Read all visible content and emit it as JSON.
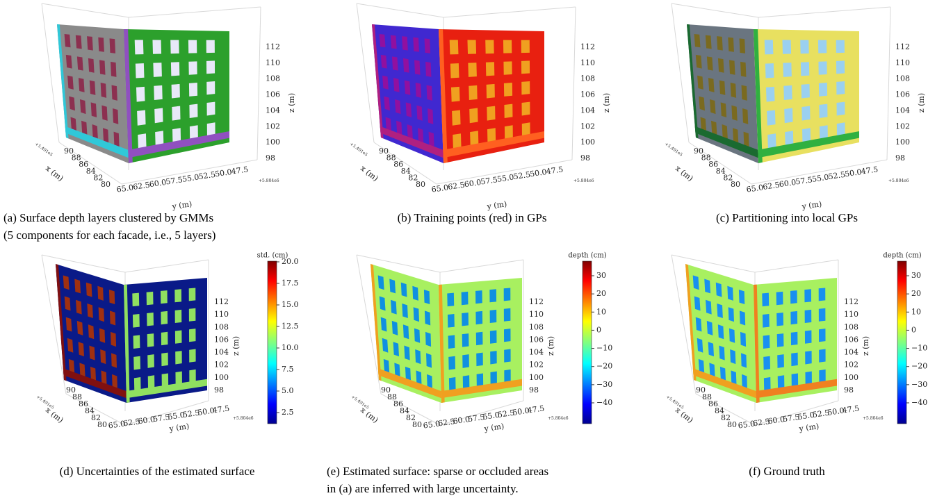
{
  "panels": [
    {
      "axes": {
        "x_ticks": [
          "90",
          "88",
          "86",
          "84",
          "82",
          "80"
        ],
        "x_label": "x (m)",
        "x_offset": "+5.491e5",
        "y_ticks": [
          "65.0",
          "62.5",
          "60.0",
          "57.5",
          "55.0",
          "52.5",
          "50.0",
          "47.5"
        ],
        "y_label": "y (m)",
        "y_offset": "+5.804e6",
        "z_ticks": [
          "112",
          "110",
          "108",
          "106",
          "104",
          "102",
          "100",
          "98"
        ],
        "z_label": "z (m)"
      },
      "caption": [
        "(a) Surface depth layers clustered by GMMs",
        "(5 components for each facade, i.e., 5 layers)"
      ]
    },
    {
      "axes": {
        "x_ticks": [
          "90",
          "88",
          "86",
          "84",
          "82",
          "80"
        ],
        "x_label": "x (m)",
        "x_offset": "+5.491e5",
        "y_ticks": [
          "65.0",
          "62.5",
          "60.0",
          "57.5",
          "55.0",
          "52.5",
          "50.0",
          "47.5"
        ],
        "y_label": "y (m)",
        "y_offset": "+5.804e6",
        "z_ticks": [
          "112",
          "110",
          "108",
          "106",
          "104",
          "102",
          "100",
          "98"
        ],
        "z_label": "z (m)"
      },
      "caption": [
        "(b) Training points (red) in GPs"
      ]
    },
    {
      "axes": {
        "x_ticks": [
          "90",
          "88",
          "86",
          "84",
          "82",
          "80"
        ],
        "x_label": "x (m)",
        "x_offset": "+5.491e5",
        "y_ticks": [
          "65.0",
          "62.5",
          "60.0",
          "57.5",
          "55.0",
          "52.5",
          "50.0",
          "47.5"
        ],
        "y_label": "y (m)",
        "y_offset": "+5.804e6",
        "z_ticks": [
          "112",
          "110",
          "108",
          "106",
          "104",
          "102",
          "100",
          "98"
        ],
        "z_label": "z (m)"
      },
      "caption": [
        "(c) Partitioning into local GPs"
      ]
    },
    {
      "axes": {
        "x_ticks": [
          "90",
          "88",
          "86",
          "84",
          "82",
          "80"
        ],
        "x_label": "x (m)",
        "x_offset": "+5.491e5",
        "y_ticks": [
          "65.0",
          "62.5",
          "60.0",
          "57.5",
          "55.0",
          "52.5",
          "50.0",
          "47.5"
        ],
        "y_label": "y (m)",
        "y_offset": "+5.804e6",
        "z_ticks": [
          "112",
          "110",
          "108",
          "106",
          "104",
          "102",
          "100",
          "98"
        ],
        "z_label": "z (m)"
      },
      "colorbar": {
        "label": "std. (cm)",
        "ticks": [
          "20.0",
          "17.5",
          "15.0",
          "12.5",
          "10.0",
          "7.5",
          "5.0",
          "2.5"
        ]
      },
      "caption": [
        "(d) Uncertainties of the estimated surface"
      ]
    },
    {
      "axes": {
        "x_ticks": [
          "90",
          "88",
          "86",
          "84",
          "82",
          "80"
        ],
        "x_label": "x (m)",
        "x_offset": "+5.491e5",
        "y_ticks": [
          "65.0",
          "62.5",
          "60.0",
          "57.5",
          "55.0",
          "52.5",
          "50.0",
          "47.5"
        ],
        "y_label": "y (m)",
        "y_offset": "+5.804e6",
        "z_ticks": [
          "112",
          "110",
          "108",
          "106",
          "104",
          "102",
          "100",
          "98"
        ],
        "z_label": "z (m)"
      },
      "colorbar": {
        "label": "depth (cm)",
        "ticks": [
          "30",
          "20",
          "10",
          "0",
          "−10",
          "−20",
          "−30",
          "−40"
        ]
      },
      "caption": [
        "(e) Estimated surface: sparse or occluded areas",
        "in (a) are inferred with large uncertainty."
      ]
    },
    {
      "axes": {
        "x_ticks": [
          "90",
          "88",
          "86",
          "84",
          "82",
          "80"
        ],
        "x_label": "x (m)",
        "x_offset": "+5.491e5",
        "y_ticks": [
          "65.0",
          "62.5",
          "60.0",
          "57.5",
          "55.0",
          "52.5",
          "50.0",
          "47.5"
        ],
        "y_label": "y (m)",
        "y_offset": "+5.804e6",
        "z_ticks": [
          "112",
          "110",
          "108",
          "106",
          "104",
          "102",
          "100",
          "98"
        ],
        "z_label": "z (m)"
      },
      "colorbar": {
        "label": "depth (cm)",
        "ticks": [
          "30",
          "20",
          "10",
          "0",
          "−10",
          "−20",
          "−30",
          "−40"
        ]
      },
      "caption": [
        "(f) Ground truth"
      ]
    }
  ]
}
